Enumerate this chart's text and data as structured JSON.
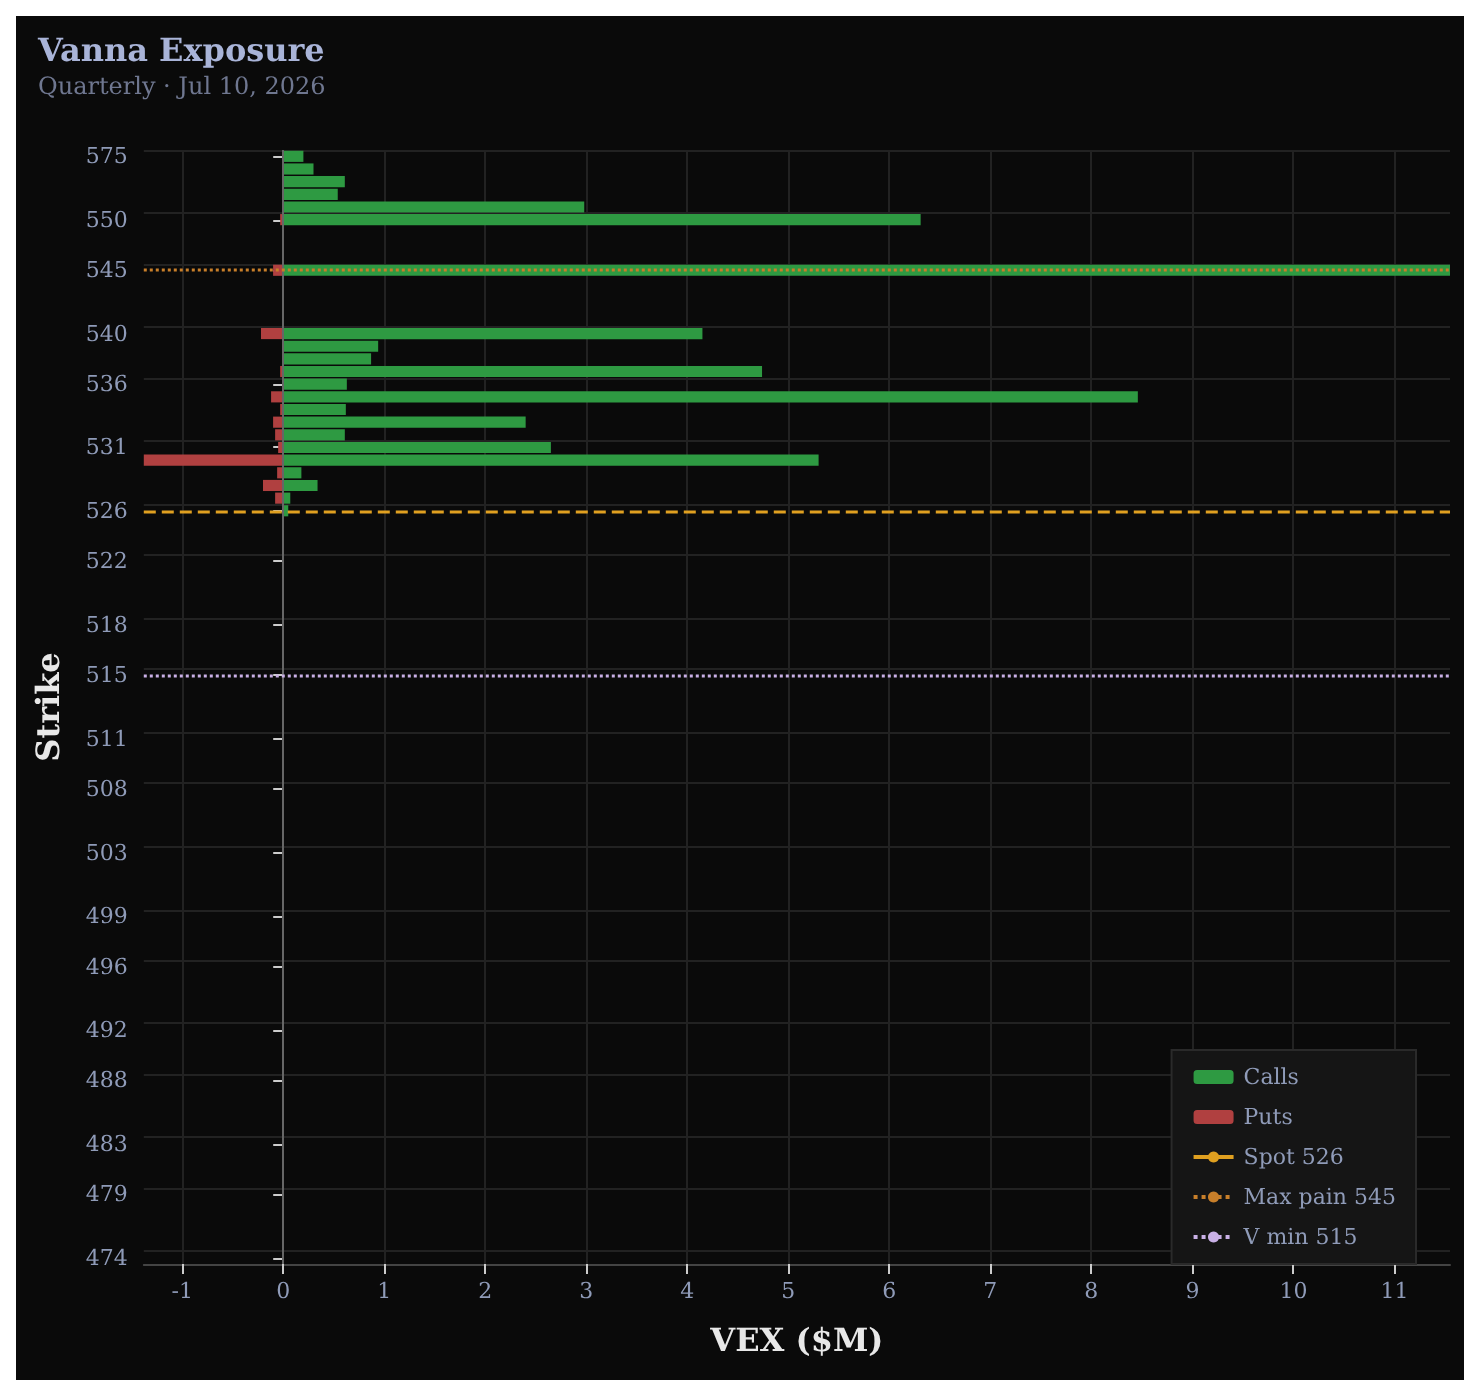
{
  "chart_data": {
    "type": "bar",
    "orientation": "horizontal",
    "title": "Vanna Exposure",
    "subtitle": "Quarterly · Jul 10, 2026",
    "xlabel": "VEX ($M)",
    "ylabel": "Strike",
    "categories": [
      "575",
      null,
      null,
      null,
      null,
      "550",
      null,
      null,
      null,
      "545",
      null,
      null,
      null,
      null,
      "540",
      null,
      null,
      null,
      "536",
      null,
      null,
      null,
      null,
      "531",
      null,
      null,
      null,
      null,
      "526",
      null,
      null,
      null,
      "522",
      null,
      null,
      null,
      null,
      "518",
      null,
      null,
      null,
      "515",
      null,
      null,
      null,
      null,
      "511",
      null,
      null,
      null,
      "508",
      null,
      null,
      null,
      null,
      "503",
      null,
      null,
      null,
      null,
      "499",
      null,
      null,
      null,
      "496",
      null,
      null,
      null,
      null,
      "492",
      null,
      null,
      null,
      "488",
      null,
      null,
      null,
      null,
      "483",
      null,
      null,
      null,
      "479",
      null,
      null,
      null,
      null,
      "474"
    ],
    "series": [
      {
        "name": "Calls",
        "color": "#2e9a42",
        "values": [
          0.2,
          0.3,
          0.61,
          0.54,
          2.98,
          6.31,
          null,
          null,
          null,
          11.55,
          null,
          null,
          null,
          null,
          4.15,
          0.94,
          0.87,
          4.74,
          0.63,
          8.46,
          0.62,
          2.4,
          0.61,
          2.65,
          5.3,
          0.18,
          0.34,
          0.07,
          0.05,
          null,
          null,
          null,
          null,
          null,
          null,
          null,
          null,
          null,
          null,
          null,
          null,
          null,
          null,
          null,
          null,
          null,
          null,
          null,
          null,
          null,
          null,
          null,
          null,
          null,
          null,
          null,
          null,
          null,
          null,
          null,
          null,
          null,
          null,
          null,
          null,
          null,
          null,
          null,
          null,
          null,
          null,
          null,
          null,
          null,
          null,
          null,
          null,
          null,
          null,
          null,
          null,
          null,
          null,
          null,
          null,
          null,
          null,
          null
        ]
      },
      {
        "name": "Puts",
        "color": "#b04040",
        "values": [
          null,
          null,
          null,
          null,
          null,
          -0.03,
          null,
          null,
          null,
          -0.1,
          null,
          null,
          null,
          null,
          -0.22,
          null,
          null,
          -0.03,
          null,
          -0.12,
          -0.03,
          -0.1,
          -0.08,
          -0.05,
          -1.38,
          -0.06,
          -0.2,
          -0.08,
          null,
          null,
          null,
          null,
          null,
          null,
          null,
          null,
          null,
          null,
          null,
          null,
          null,
          null,
          null,
          null,
          null,
          null,
          null,
          null,
          null,
          null,
          null,
          null,
          null,
          null,
          null,
          null,
          null,
          null,
          null,
          null,
          null,
          null,
          null,
          null,
          null,
          null,
          null,
          null,
          null,
          null,
          null,
          null,
          null,
          null,
          null,
          null,
          null,
          null,
          null,
          null,
          null,
          null,
          null,
          null,
          null,
          null,
          null,
          null
        ]
      }
    ],
    "xlim": [
      -1.38,
      11.55
    ],
    "xticks": [
      -1,
      0,
      1,
      2,
      3,
      4,
      5,
      6,
      7,
      8,
      9,
      10,
      11
    ],
    "ref_lines": [
      {
        "axis": "y",
        "value": "526",
        "label": "Spot 526",
        "color": "#e0a020",
        "line_style": "dashed"
      },
      {
        "axis": "y",
        "value": "545",
        "label": "Max pain 545",
        "color": "#c87f2a",
        "line_style": "dotted"
      },
      {
        "axis": "y",
        "value": "515",
        "label": "V min 515",
        "color": "#c9b0e6",
        "line_style": "dotted"
      }
    ],
    "grid": true,
    "legend": "bottom right"
  }
}
